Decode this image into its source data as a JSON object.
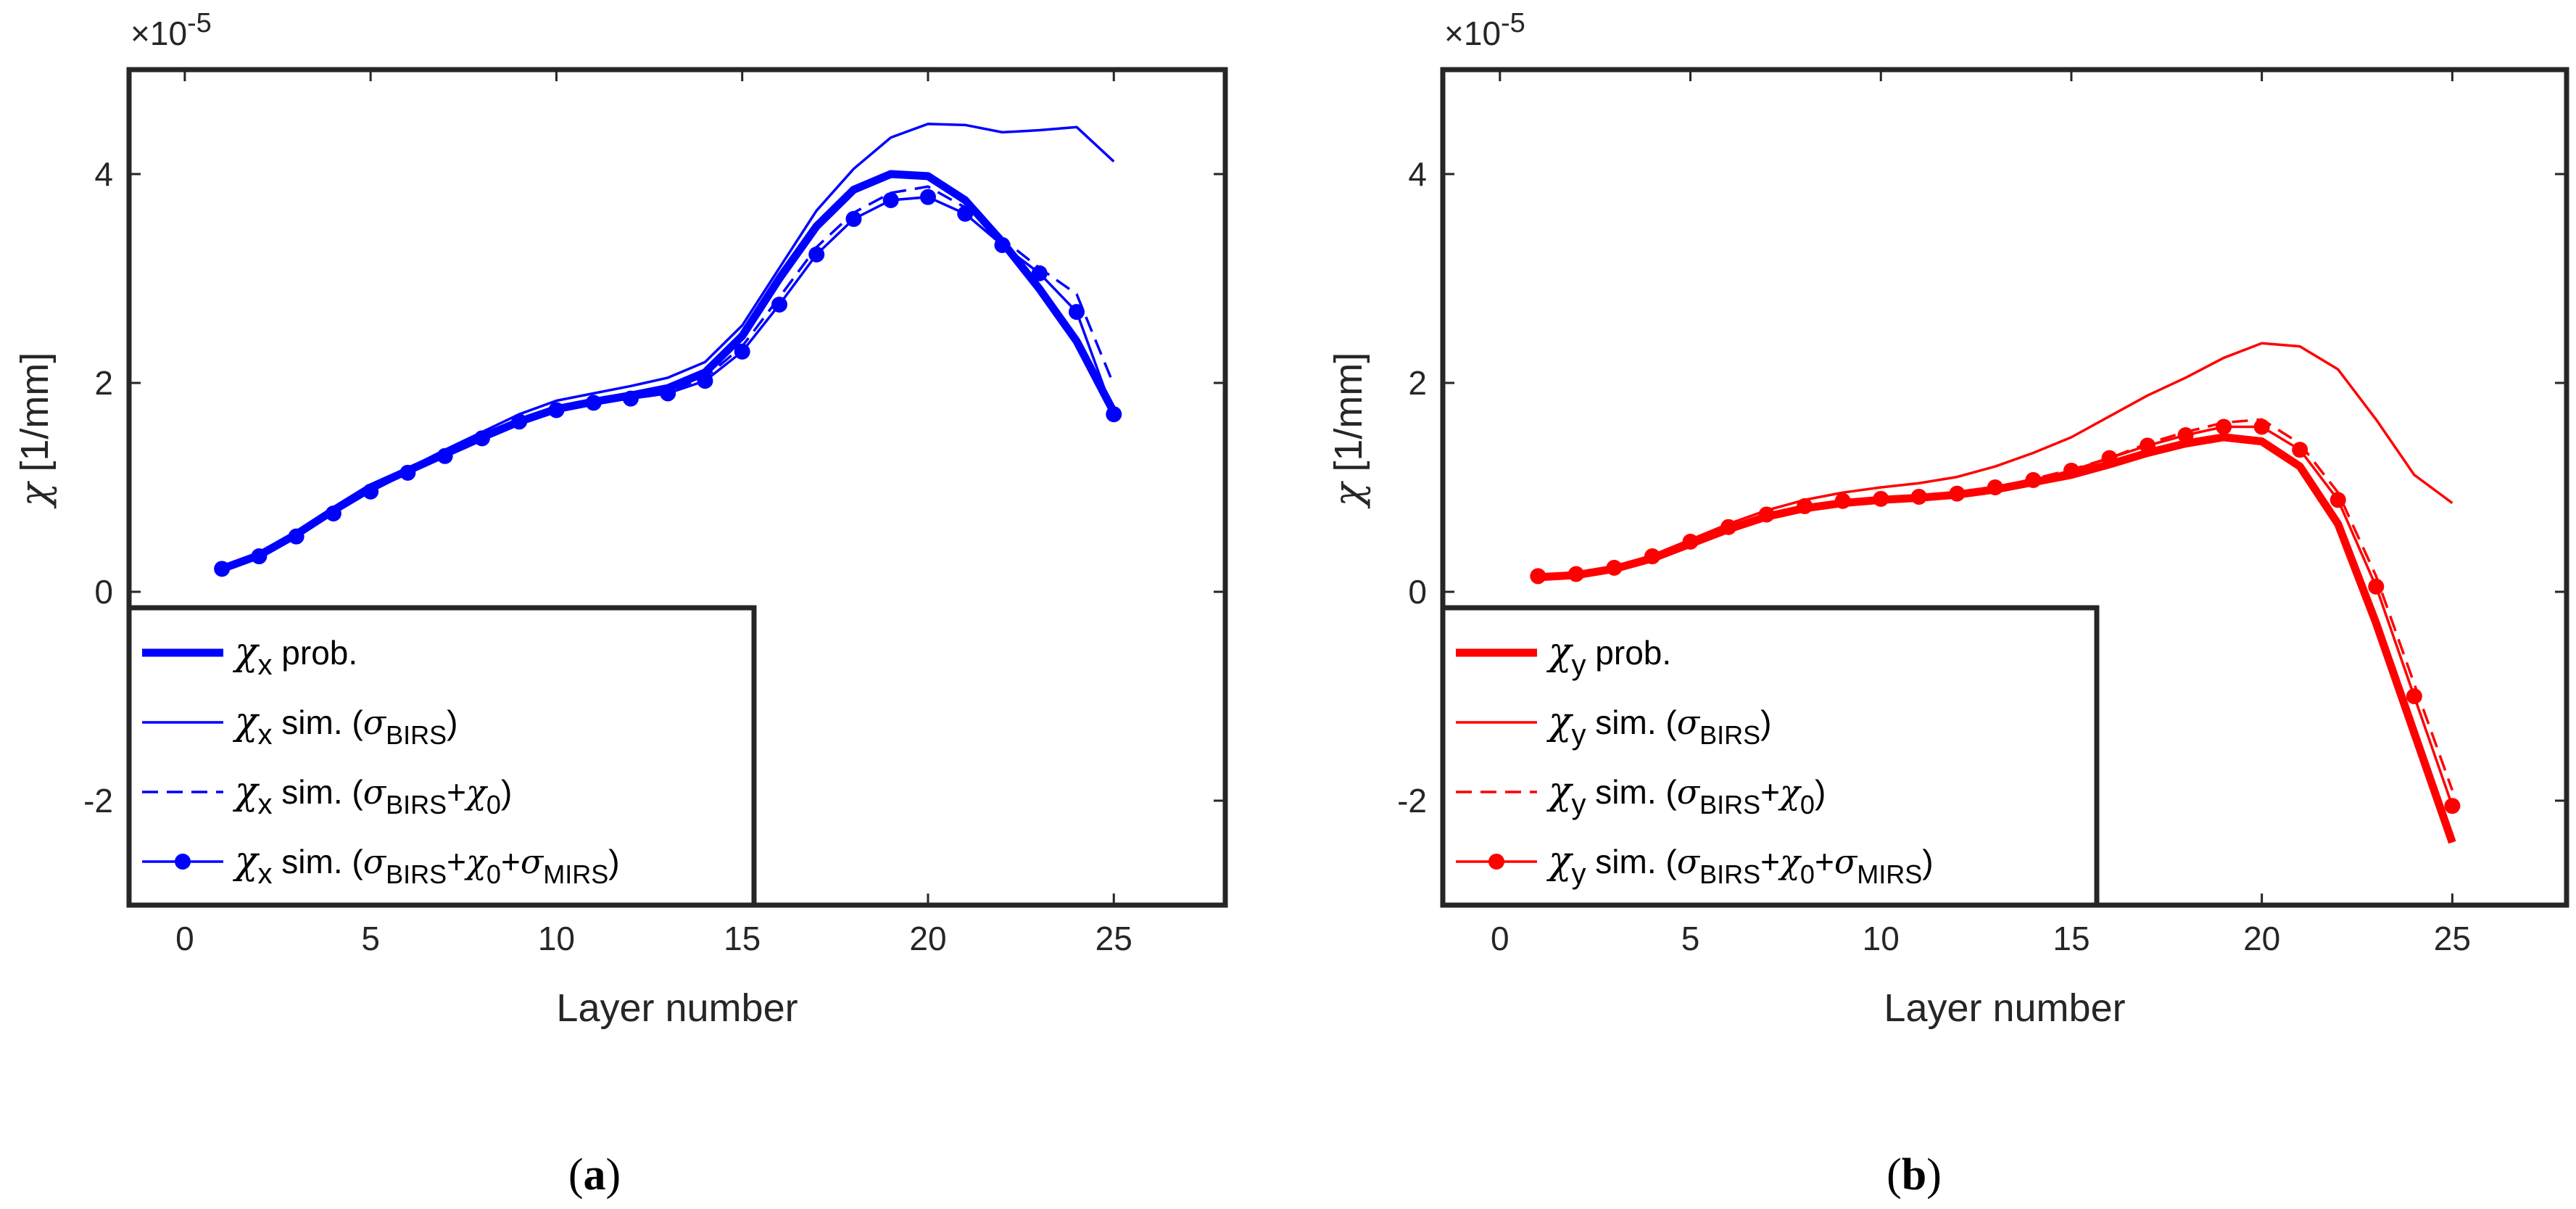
{
  "chart_data": [
    {
      "type": "line",
      "id": "a",
      "caption_letter": "a",
      "color": "#0000ff",
      "xlabel": "Layer number",
      "ylabel_symbol": "χ",
      "ylabel_unit": " [1/mm]",
      "exponent_label": "×10",
      "exponent_power": "-5",
      "xlim": [
        -1.5,
        28
      ],
      "ylim": [
        -3,
        5
      ],
      "xticks": [
        0,
        5,
        10,
        15,
        20,
        25
      ],
      "yticks": [
        -2,
        0,
        2,
        4
      ],
      "ytick_labels": [
        "-2",
        "0",
        "2",
        "4"
      ],
      "units_scale": "1e-5",
      "x": [
        1,
        2,
        3,
        4,
        5,
        6,
        7,
        8,
        9,
        10,
        11,
        12,
        13,
        14,
        15,
        16,
        17,
        18,
        19,
        20,
        21,
        22,
        23,
        24,
        25
      ],
      "series": [
        {
          "name": "prob.",
          "style": "thick",
          "values": [
            0.22,
            0.35,
            0.55,
            0.78,
            1.0,
            1.16,
            1.32,
            1.48,
            1.63,
            1.75,
            1.82,
            1.88,
            1.95,
            2.1,
            2.45,
            3.0,
            3.5,
            3.85,
            4.0,
            3.98,
            3.75,
            3.35,
            2.9,
            2.4,
            1.72
          ]
        },
        {
          "name": "sim. (σBIRS)",
          "style": "thin",
          "values": [
            0.24,
            0.37,
            0.57,
            0.8,
            1.02,
            1.18,
            1.36,
            1.53,
            1.7,
            1.83,
            1.9,
            1.97,
            2.05,
            2.2,
            2.55,
            3.1,
            3.65,
            4.05,
            4.35,
            4.48,
            4.47,
            4.4,
            4.42,
            4.45,
            4.12
          ]
        },
        {
          "name": "sim. (σBIRS+χ0)",
          "style": "dashed",
          "values": [
            0.22,
            0.35,
            0.55,
            0.77,
            0.98,
            1.15,
            1.31,
            1.47,
            1.62,
            1.74,
            1.81,
            1.87,
            1.92,
            2.05,
            2.35,
            2.82,
            3.3,
            3.63,
            3.82,
            3.88,
            3.68,
            3.38,
            3.1,
            2.85,
            1.98
          ]
        },
        {
          "name": "sim. (σBIRS+χ0+σMIRS)",
          "style": "markers",
          "values": [
            0.22,
            0.34,
            0.53,
            0.75,
            0.96,
            1.14,
            1.3,
            1.47,
            1.63,
            1.74,
            1.81,
            1.85,
            1.9,
            2.02,
            2.3,
            2.75,
            3.23,
            3.57,
            3.75,
            3.78,
            3.62,
            3.32,
            3.05,
            2.68,
            1.7
          ]
        }
      ],
      "legend": {
        "position": "bottom-left",
        "symbol": "χ",
        "subscript": "x",
        "entries": [
          {
            "label": "prob."
          },
          {
            "label": "sim. (",
            "s1": "σ",
            "s1sub": "BIRS",
            "tail": ")"
          },
          {
            "label": "sim. (",
            "s1": "σ",
            "s1sub": "BIRS",
            "plus1": "+",
            "s2": "χ",
            "s2sub": "0",
            "tail": ")"
          },
          {
            "label": "sim. (",
            "s1": "σ",
            "s1sub": "BIRS",
            "plus1": "+",
            "s2": "χ",
            "s2sub": "0",
            "plus2": "+",
            "s3": "σ",
            "s3sub": "MIRS",
            "tail": ")"
          }
        ]
      }
    },
    {
      "type": "line",
      "id": "b",
      "caption_letter": "b",
      "color": "#ff0000",
      "xlabel": "Layer number",
      "ylabel_symbol": "χ",
      "ylabel_unit": " [1/mm]",
      "exponent_label": "×10",
      "exponent_power": "-5",
      "xlim": [
        -1.5,
        28
      ],
      "ylim": [
        -3,
        5
      ],
      "xticks": [
        0,
        5,
        10,
        15,
        20,
        25
      ],
      "yticks": [
        -2,
        0,
        2,
        4
      ],
      "ytick_labels": [
        "-2",
        "0",
        "2",
        "4"
      ],
      "units_scale": "1e-5",
      "x": [
        1,
        2,
        3,
        4,
        5,
        6,
        7,
        8,
        9,
        10,
        11,
        12,
        13,
        14,
        15,
        16,
        17,
        18,
        19,
        20,
        21,
        22,
        23,
        24,
        25
      ],
      "series": [
        {
          "name": "prob.",
          "style": "thick",
          "values": [
            0.14,
            0.16,
            0.22,
            0.32,
            0.46,
            0.6,
            0.72,
            0.8,
            0.85,
            0.88,
            0.9,
            0.93,
            0.98,
            1.05,
            1.12,
            1.22,
            1.33,
            1.42,
            1.48,
            1.44,
            1.2,
            0.65,
            -0.3,
            -1.35,
            -2.4
          ]
        },
        {
          "name": "sim. (σBIRS)",
          "style": "thin",
          "values": [
            0.15,
            0.18,
            0.24,
            0.35,
            0.5,
            0.65,
            0.78,
            0.88,
            0.95,
            1.0,
            1.04,
            1.1,
            1.2,
            1.33,
            1.48,
            1.68,
            1.88,
            2.05,
            2.24,
            2.38,
            2.35,
            2.13,
            1.65,
            1.12,
            0.85
          ]
        },
        {
          "name": "sim. (σBIRS+χ0)",
          "style": "dashed",
          "values": [
            0.15,
            0.17,
            0.23,
            0.34,
            0.48,
            0.62,
            0.74,
            0.82,
            0.87,
            0.9,
            0.92,
            0.95,
            1.0,
            1.08,
            1.17,
            1.28,
            1.42,
            1.53,
            1.62,
            1.65,
            1.42,
            0.95,
            0.15,
            -0.88,
            -1.9
          ]
        },
        {
          "name": "sim. (σBIRS+χ0+σMIRS)",
          "style": "markers",
          "values": [
            0.15,
            0.17,
            0.23,
            0.34,
            0.48,
            0.62,
            0.74,
            0.82,
            0.87,
            0.89,
            0.91,
            0.94,
            1.0,
            1.07,
            1.16,
            1.28,
            1.4,
            1.5,
            1.58,
            1.58,
            1.36,
            0.88,
            0.05,
            -1.0,
            -2.05
          ]
        }
      ],
      "legend": {
        "position": "bottom-left",
        "symbol": "χ",
        "subscript": "y",
        "entries": [
          {
            "label": "prob."
          },
          {
            "label": "sim. (",
            "s1": "σ",
            "s1sub": "BIRS",
            "tail": ")"
          },
          {
            "label": "sim. (",
            "s1": "σ",
            "s1sub": "BIRS",
            "plus1": "+",
            "s2": "χ",
            "s2sub": "0",
            "tail": ")"
          },
          {
            "label": "sim. (",
            "s1": "σ",
            "s1sub": "BIRS",
            "plus1": "+",
            "s2": "χ",
            "s2sub": "0",
            "plus2": "+",
            "s3": "σ",
            "s3sub": "MIRS",
            "tail": ")"
          }
        ]
      }
    }
  ]
}
